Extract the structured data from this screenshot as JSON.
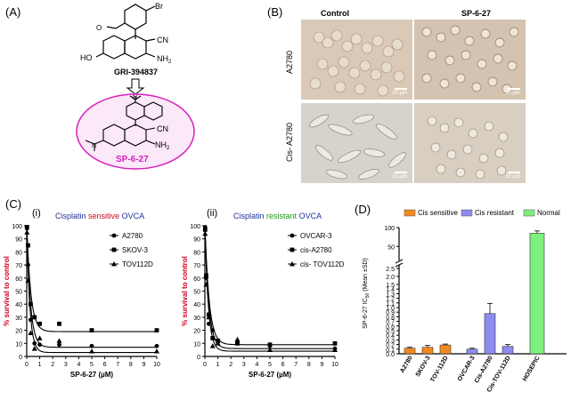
{
  "panelA": {
    "label": "(A)",
    "compound1_name": "GRI-394837",
    "compound2_name": "SP-6-27",
    "atoms1": {
      "br": "Br",
      "cn": "CN",
      "ho": "HO",
      "nh2": "NH",
      "nh2sub": "2"
    },
    "atoms2": {
      "cn": "CN",
      "nh2": "NH",
      "nh2sub": "2"
    }
  },
  "panelB": {
    "label": "(B)",
    "col_control": "Control",
    "col_sp": "SP-6-27",
    "row1": "A2780",
    "row2": "Cis- A2780",
    "scalebar": "10 μm"
  },
  "panelC": {
    "label": "(C)",
    "sub_i": "(i)",
    "sub_ii": "(ii)",
    "title_i": {
      "w1": "Cisplatin",
      "w2": "sensitive",
      "w3": "OVCA"
    },
    "title_ii": {
      "w1": "Cisplatin",
      "w2": "resistant",
      "w3": "OVCA"
    },
    "ylabel": "% survival to control",
    "xlabel": "SP-6-27 (µM)",
    "legend_i": [
      "A2780",
      "SKOV-3",
      "TOV112D"
    ],
    "legend_ii": [
      "OVCAR-3",
      "cis-A2780",
      "cis- TOV112D"
    ]
  },
  "panelD": {
    "label": "(D)",
    "ylabel_main": "SP-6-27  IC",
    "ylabel_sub": "50",
    "ylabel_tail": " (Mean ±SD)",
    "legend": [
      "Cis sensitive",
      "Cis resistant",
      "Normal"
    ]
  },
  "colors": {
    "sensitive_red": "#d0021b",
    "resistant_green": "#1a9a1a",
    "title_blue": "#1f2f9b",
    "sp_magenta": "#d61fbd",
    "bar_orange": "#f28a1e",
    "bar_purple": "#8b8bf0",
    "bar_green": "#7df07d"
  },
  "chart_data": [
    {
      "type": "scatter",
      "panel": "C(i)",
      "title": "Cisplatin sensitive OVCA",
      "xlabel": "SP-6-27 (µM)",
      "ylabel": "% survival to control",
      "xlim": [
        0,
        10
      ],
      "ylim": [
        0,
        100
      ],
      "xticks": [
        0,
        1,
        2,
        3,
        4,
        5,
        6,
        7,
        8,
        9,
        10
      ],
      "yticks": [
        0,
        10,
        20,
        30,
        40,
        50,
        60,
        70,
        80,
        90,
        100
      ],
      "legend_position": "right",
      "series": [
        {
          "name": "A2780",
          "marker": "circle",
          "points": [
            [
              0.02,
              98
            ],
            [
              0.1,
              70
            ],
            [
              0.3,
              28
            ],
            [
              0.6,
              10
            ],
            [
              1,
              9
            ],
            [
              2.5,
              9
            ],
            [
              5,
              8
            ],
            [
              10,
              8
            ]
          ],
          "fit": {
            "bottom": 7,
            "top": 100,
            "k": 3.5
          }
        },
        {
          "name": "SKOV-3",
          "marker": "square",
          "points": [
            [
              0.02,
              99
            ],
            [
              0.1,
              85
            ],
            [
              0.3,
              40
            ],
            [
              0.6,
              30
            ],
            [
              1,
              25
            ],
            [
              2.5,
              25
            ],
            [
              5,
              20
            ],
            [
              10,
              20
            ]
          ],
          "fit": {
            "bottom": 19,
            "top": 100,
            "k": 3.2
          }
        },
        {
          "name": "TOV112D",
          "marker": "triangle",
          "points": [
            [
              0.02,
              95
            ],
            [
              0.1,
              58
            ],
            [
              0.3,
              18
            ],
            [
              0.6,
              6
            ],
            [
              1,
              14
            ],
            [
              2.5,
              12
            ],
            [
              5,
              4
            ],
            [
              10,
              4
            ]
          ],
          "fit": {
            "bottom": 3,
            "top": 100,
            "k": 4.2
          }
        }
      ]
    },
    {
      "type": "scatter",
      "panel": "C(ii)",
      "title": "Cisplatin resistant OVCA",
      "xlabel": "SP-6-27 (µM)",
      "ylabel": "% survival to control",
      "xlim": [
        0,
        10
      ],
      "ylim": [
        0,
        100
      ],
      "xticks": [
        0,
        1,
        2,
        3,
        4,
        5,
        6,
        7,
        8,
        9,
        10
      ],
      "yticks": [
        0,
        10,
        20,
        30,
        40,
        50,
        60,
        70,
        80,
        90,
        100
      ],
      "legend_position": "right",
      "series": [
        {
          "name": "OVCAR-3",
          "marker": "circle",
          "points": [
            [
              0.02,
              99
            ],
            [
              0.1,
              60
            ],
            [
              0.3,
              25
            ],
            [
              0.6,
              20
            ],
            [
              1,
              11
            ],
            [
              2.5,
              10
            ],
            [
              5,
              8
            ],
            [
              10,
              6
            ]
          ],
          "fit": {
            "bottom": 6,
            "top": 100,
            "k": 3.3
          }
        },
        {
          "name": "cis-A2780",
          "marker": "square",
          "points": [
            [
              0.02,
              97
            ],
            [
              0.1,
              62
            ],
            [
              0.3,
              32
            ],
            [
              0.6,
              14
            ],
            [
              1,
              12
            ],
            [
              2.5,
              10
            ],
            [
              5,
              9
            ],
            [
              10,
              10
            ]
          ],
          "fit": {
            "bottom": 9,
            "top": 100,
            "k": 3.0
          }
        },
        {
          "name": "cis- TOV112D",
          "marker": "triangle",
          "points": [
            [
              0.02,
              94
            ],
            [
              0.1,
              55
            ],
            [
              0.3,
              30
            ],
            [
              0.6,
              8
            ],
            [
              1,
              10
            ],
            [
              2.5,
              13
            ],
            [
              5,
              5
            ],
            [
              10,
              5
            ]
          ],
          "fit": {
            "bottom": 4,
            "top": 100,
            "k": 3.8
          }
        }
      ]
    },
    {
      "type": "bar",
      "panel": "D",
      "ylabel": "SP-6-27 IC50 (Mean ±SD)",
      "broken_axis": true,
      "yticks_low": [
        0.0,
        0.1,
        0.2,
        0.3,
        0.4,
        0.5,
        0.6,
        0.7,
        0.8,
        0.9,
        1.0,
        1.1,
        1.2,
        1.3,
        1.4,
        1.5,
        2.0,
        2.5
      ],
      "yticks_high": [
        50,
        100
      ],
      "legend_position": "top",
      "categories": [
        "A2780",
        "SKOV-3",
        "TOV-112D",
        "OVCAR-3",
        "Cis-A2780",
        "Cis-TOV-112D",
        "HOSEPIC"
      ],
      "groups": [
        "Cis sensitive",
        "Cis sensitive",
        "Cis sensitive",
        "Cis resistant",
        "Cis resistant",
        "Cis resistant",
        "Normal"
      ],
      "values": [
        0.12,
        0.14,
        0.19,
        0.1,
        0.87,
        0.16,
        85
      ],
      "errors": [
        0.02,
        0.04,
        0.02,
        0.02,
        0.22,
        0.04,
        6
      ]
    }
  ]
}
